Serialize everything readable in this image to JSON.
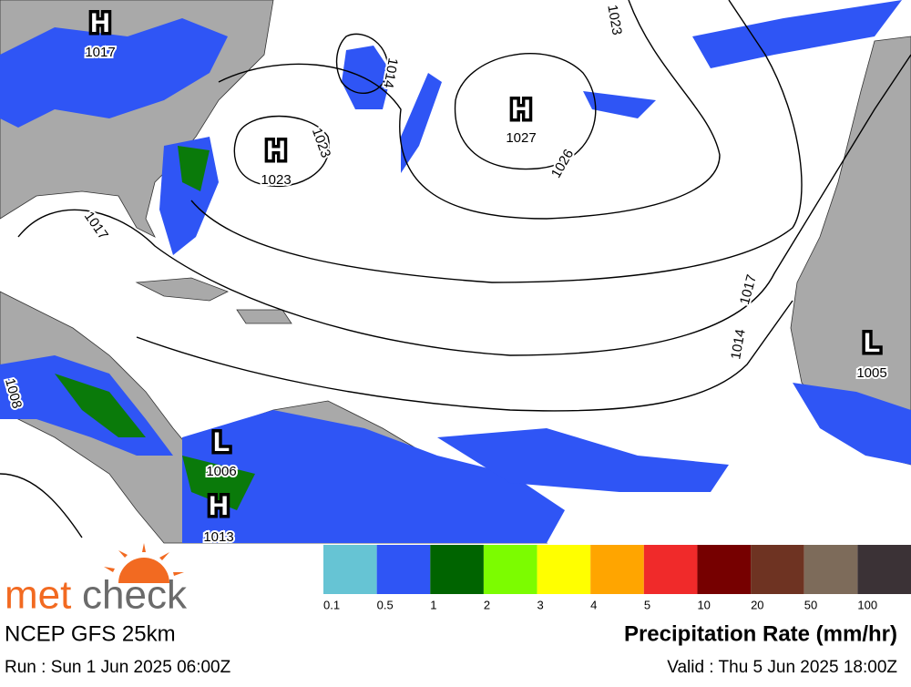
{
  "map": {
    "pressure_centers": [
      {
        "kind": "H",
        "value": "1017"
      },
      {
        "kind": "H",
        "value": "1023"
      },
      {
        "kind": "H",
        "value": "1027"
      },
      {
        "kind": "L",
        "value": "1005"
      },
      {
        "kind": "L",
        "value": "1006"
      },
      {
        "kind": "H",
        "value": "1013"
      }
    ],
    "isobar_labels": [
      "1023",
      "1017",
      "1014",
      "1023",
      "1026",
      "1017",
      "1014",
      "1008"
    ]
  },
  "legend": {
    "title": "Precipitation Rate (mm/hr)",
    "labels": [
      "0.1",
      "0.5",
      "1",
      "2",
      "3",
      "4",
      "5",
      "10",
      "20",
      "50",
      "100"
    ],
    "colors": [
      "#66c4d4",
      "#2f55f5",
      "#006400",
      "#7cfc00",
      "#ffff00",
      "#ffa500",
      "#f02a2a",
      "#760000",
      "#6e3322",
      "#7d6b5a",
      "#3b3236"
    ]
  },
  "footer": {
    "logo_part1": "met",
    "logo_part2": "check",
    "model": "NCEP GFS 25km",
    "run": "Run : Sun 1 Jun 2025 06:00Z",
    "valid": "Valid : Thu 5 Jun 2025 18:00Z"
  }
}
